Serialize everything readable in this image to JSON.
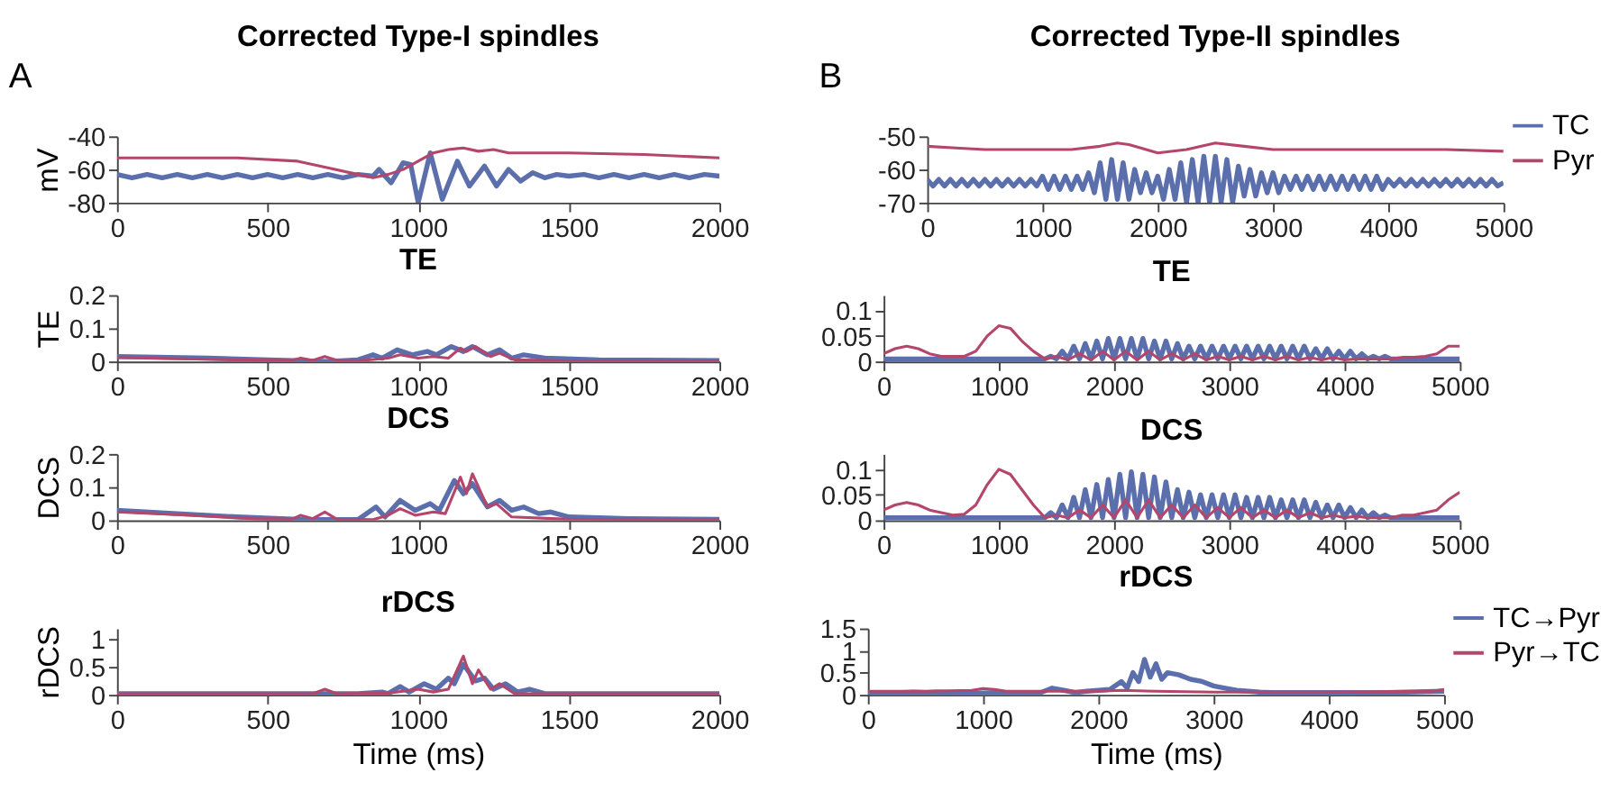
{
  "chart_data": [
    {
      "type": "line",
      "title": "Corrected Type-I spindles",
      "ylabel": "mV",
      "annotations": [
        "A"
      ],
      "xlim": [
        0,
        2000
      ],
      "xticks": [
        0,
        500,
        1000,
        1500,
        2000
      ],
      "ylim": [
        -80,
        -40
      ],
      "yticks": [
        -80,
        -60,
        -40
      ],
      "series": [
        {
          "color": "#5b6fad",
          "x": [
            0,
            50,
            100,
            150,
            200,
            250,
            300,
            350,
            400,
            450,
            500,
            550,
            600,
            650,
            700,
            750,
            800,
            850,
            870,
            910,
            950,
            975,
            1000,
            1040,
            1080,
            1130,
            1170,
            1220,
            1260,
            1300,
            1340,
            1380,
            1420,
            1460,
            1500,
            1550,
            1600,
            1650,
            1700,
            1750,
            1800,
            1850,
            1900,
            1950,
            2000
          ],
          "values": [
            -63,
            -65,
            -63,
            -65,
            -63,
            -65,
            -63,
            -65,
            -63,
            -65,
            -63,
            -65,
            -63,
            -65,
            -63,
            -65,
            -63,
            -64,
            -60,
            -68,
            -56,
            -57,
            -80,
            -50,
            -78,
            -55,
            -70,
            -58,
            -70,
            -60,
            -67,
            -62,
            -65,
            -63,
            -64,
            -63,
            -65,
            -63,
            -65,
            -63,
            -65,
            -63,
            -65,
            -63,
            -64
          ]
        },
        {
          "color": "#b5466b",
          "x": [
            0,
            200,
            400,
            600,
            700,
            800,
            850,
            900,
            950,
            1000,
            1050,
            1100,
            1150,
            1200,
            1250,
            1300,
            1500,
            1750,
            2000
          ],
          "values": [
            -53,
            -53,
            -53,
            -55,
            -59,
            -63,
            -65,
            -63,
            -60,
            -55,
            -50,
            -48,
            -47,
            -49,
            -48,
            -50,
            -50,
            -51,
            -53
          ]
        }
      ]
    },
    {
      "type": "line",
      "title": "Corrected Type-II spindles",
      "annotations": [
        "B"
      ],
      "legend": "top right",
      "xlim": [
        0,
        5000
      ],
      "xticks": [
        0,
        1000,
        2000,
        3000,
        4000,
        5000
      ],
      "ylim": [
        -70,
        -50
      ],
      "yticks": [
        -70,
        -60,
        -50
      ],
      "series": [
        {
          "name": "TC",
          "color": "#5b6fad",
          "x": [
            0,
            50,
            100,
            150,
            200,
            250,
            300,
            350,
            400,
            450,
            500,
            550,
            600,
            650,
            700,
            750,
            800,
            850,
            900,
            950,
            1000,
            1050,
            1100,
            1150,
            1200,
            1250,
            1300,
            1350,
            1400,
            1450,
            1500,
            1550,
            1600,
            1650,
            1700,
            1750,
            1800,
            1850,
            1900,
            1950,
            2000,
            2050,
            2100,
            2150,
            2200,
            2250,
            2300,
            2350,
            2400,
            2450,
            2500,
            2550,
            2600,
            2650,
            2700,
            2750,
            2800,
            2850,
            2900,
            2950,
            3000,
            3050,
            3100,
            3150,
            3200,
            3250,
            3300,
            3350,
            3400,
            3450,
            3500,
            3550,
            3600,
            3650,
            3700,
            3750,
            3800,
            3850,
            3900,
            3950,
            4000,
            4050,
            4100,
            4150,
            4200,
            4250,
            4300,
            4350,
            4400,
            4450,
            4500,
            4550,
            4600,
            4650,
            4700,
            4750,
            4800,
            4850,
            4900,
            4950,
            5000
          ],
          "values": [
            -63,
            -65,
            -63,
            -65,
            -63,
            -65,
            -63,
            -65,
            -63,
            -65,
            -63,
            -65,
            -63,
            -65,
            -63,
            -65,
            -63,
            -65,
            -63,
            -65,
            -62,
            -66,
            -62,
            -66,
            -62,
            -66,
            -62,
            -66,
            -61,
            -67,
            -58,
            -69,
            -57,
            -69,
            -58,
            -69,
            -60,
            -67,
            -61,
            -67,
            -62,
            -69,
            -60,
            -69,
            -58,
            -70,
            -57,
            -70,
            -56,
            -70,
            -56,
            -70,
            -57,
            -70,
            -59,
            -68,
            -60,
            -68,
            -61,
            -67,
            -61,
            -67,
            -62,
            -66,
            -62,
            -66,
            -62,
            -66,
            -62,
            -66,
            -62,
            -66,
            -62,
            -66,
            -62,
            -66,
            -62,
            -66,
            -62,
            -66,
            -63,
            -65,
            -63,
            -65,
            -63,
            -65,
            -63,
            -65,
            -63,
            -65,
            -63,
            -65,
            -63,
            -65,
            -63,
            -65,
            -63,
            -65,
            -63,
            -65,
            -64
          ]
        },
        {
          "name": "Pyr",
          "color": "#b5466b",
          "x": [
            0,
            250,
            500,
            750,
            1000,
            1250,
            1500,
            1650,
            1750,
            2000,
            2250,
            2500,
            2750,
            3000,
            3500,
            4000,
            4500,
            5000
          ],
          "values": [
            -53,
            -53.5,
            -54,
            -54,
            -54,
            -54,
            -53,
            -52,
            -52.5,
            -55,
            -54,
            -52,
            -53,
            -54,
            -54,
            -54,
            -54,
            -54.5
          ]
        }
      ]
    },
    {
      "type": "line",
      "title": "TE",
      "ylabel": "TE",
      "xlim": [
        0,
        2000
      ],
      "xticks": [
        0,
        500,
        1000,
        1500,
        2000
      ],
      "ylim": [
        0,
        0.2
      ],
      "yticks": [
        0,
        0.1,
        0.2
      ],
      "series": [
        {
          "color": "#5b6fad",
          "x": [
            0,
            300,
            500,
            700,
            800,
            850,
            880,
            930,
            980,
            1030,
            1060,
            1110,
            1150,
            1180,
            1230,
            1270,
            1310,
            1350,
            1420,
            1600,
            2000
          ],
          "values": [
            0.015,
            0.01,
            0.005,
            0,
            0.005,
            0.02,
            0.01,
            0.035,
            0.02,
            0.03,
            0.02,
            0.045,
            0.03,
            0.045,
            0.02,
            0.035,
            0.01,
            0.02,
            0.01,
            0.005,
            0.003
          ]
        },
        {
          "color": "#b5466b",
          "x": [
            0,
            400,
            580,
            610,
            650,
            690,
            730,
            800,
            900,
            940,
            1000,
            1050,
            1100,
            1140,
            1160,
            1190,
            1240,
            1270,
            1320,
            1500,
            2000
          ],
          "values": [
            0.012,
            0.005,
            0.003,
            0.01,
            0.003,
            0.015,
            0.003,
            0.002,
            0.01,
            0.02,
            0.01,
            0.015,
            0.01,
            0.04,
            0.03,
            0.045,
            0.015,
            0.025,
            0.005,
            0.002,
            0.002
          ]
        }
      ]
    },
    {
      "type": "line",
      "title": "TE",
      "xlim": [
        0,
        5000
      ],
      "xticks": [
        0,
        1000,
        2000,
        3000,
        4000,
        5000
      ],
      "ylim": [
        0,
        0.13
      ],
      "yticks": [
        0,
        0.05,
        0.1
      ],
      "series": [
        {
          "color": "#5b6fad",
          "x": [
            0,
            1400,
            1450,
            1500,
            1550,
            1600,
            1650,
            1700,
            1750,
            1800,
            1850,
            1900,
            1950,
            2000,
            2050,
            2100,
            2150,
            2200,
            2250,
            2300,
            2350,
            2400,
            2450,
            2500,
            2550,
            2600,
            2650,
            2700,
            2750,
            2800,
            2850,
            2900,
            2950,
            3000,
            3050,
            3100,
            3150,
            3200,
            3250,
            3300,
            3350,
            3400,
            3450,
            3500,
            3550,
            3600,
            3650,
            3700,
            3750,
            3800,
            3850,
            3900,
            3950,
            4000,
            4050,
            4100,
            4150,
            4200,
            4250,
            4300,
            4350,
            4400,
            4450,
            4500,
            5000
          ],
          "values": [
            0.005,
            0.005,
            0.01,
            0.005,
            0.02,
            0.005,
            0.03,
            0.005,
            0.035,
            0.005,
            0.04,
            0.005,
            0.045,
            0.005,
            0.045,
            0.005,
            0.045,
            0.005,
            0.045,
            0.005,
            0.04,
            0.005,
            0.04,
            0.005,
            0.035,
            0.005,
            0.03,
            0.005,
            0.03,
            0.005,
            0.03,
            0.005,
            0.03,
            0.005,
            0.03,
            0.005,
            0.03,
            0.005,
            0.03,
            0.005,
            0.03,
            0.005,
            0.03,
            0.005,
            0.03,
            0.005,
            0.03,
            0.005,
            0.025,
            0.005,
            0.025,
            0.005,
            0.02,
            0.005,
            0.02,
            0.005,
            0.015,
            0.005,
            0.01,
            0.005,
            0.01,
            0.005,
            0.005,
            0.005,
            0.005
          ]
        },
        {
          "color": "#b5466b",
          "x": [
            0,
            100,
            200,
            300,
            400,
            500,
            600,
            700,
            800,
            900,
            1000,
            1100,
            1200,
            1300,
            1400,
            1500,
            1600,
            1700,
            1800,
            1900,
            2000,
            2100,
            2200,
            2300,
            2400,
            2500,
            2600,
            2700,
            2800,
            2900,
            3000,
            3100,
            3200,
            3300,
            3400,
            3500,
            3600,
            3700,
            3800,
            3900,
            4000,
            4100,
            4200,
            4300,
            4400,
            4500,
            4600,
            4700,
            4800,
            4900,
            5000
          ],
          "values": [
            0.015,
            0.025,
            0.03,
            0.025,
            0.015,
            0.01,
            0.01,
            0.01,
            0.02,
            0.05,
            0.07,
            0.065,
            0.04,
            0.02,
            0.005,
            0.01,
            0.003,
            0.015,
            0.003,
            0.02,
            0.003,
            0.02,
            0.003,
            0.02,
            0.003,
            0.015,
            0.003,
            0.015,
            0.003,
            0.01,
            0.003,
            0.01,
            0.003,
            0.01,
            0.003,
            0.01,
            0.003,
            0.008,
            0.003,
            0.008,
            0.003,
            0.005,
            0.005,
            0.005,
            0.005,
            0.008,
            0.008,
            0.01,
            0.015,
            0.03,
            0.03
          ]
        }
      ]
    },
    {
      "type": "line",
      "title": "DCS",
      "ylabel": "DCS",
      "xlim": [
        0,
        2000
      ],
      "xticks": [
        0,
        500,
        1000,
        1500,
        2000
      ],
      "ylim": [
        0,
        0.2
      ],
      "yticks": [
        0,
        0.1,
        0.2
      ],
      "series": [
        {
          "color": "#5b6fad",
          "x": [
            0,
            200,
            400,
            600,
            800,
            860,
            890,
            940,
            990,
            1040,
            1070,
            1120,
            1150,
            1180,
            1230,
            1270,
            1310,
            1350,
            1400,
            1440,
            1500,
            1700,
            2000
          ],
          "values": [
            0.03,
            0.02,
            0.01,
            0.003,
            0.002,
            0.04,
            0.01,
            0.06,
            0.03,
            0.05,
            0.03,
            0.12,
            0.08,
            0.11,
            0.04,
            0.06,
            0.03,
            0.04,
            0.02,
            0.025,
            0.01,
            0.005,
            0.003
          ]
        },
        {
          "color": "#b5466b",
          "x": [
            0,
            250,
            450,
            580,
            610,
            650,
            690,
            730,
            850,
            900,
            940,
            990,
            1050,
            1090,
            1140,
            1160,
            1180,
            1230,
            1260,
            1310,
            1500,
            2000
          ],
          "values": [
            0.025,
            0.015,
            0.005,
            0.003,
            0.015,
            0.005,
            0.025,
            0.003,
            0.002,
            0.015,
            0.035,
            0.015,
            0.025,
            0.02,
            0.13,
            0.08,
            0.14,
            0.04,
            0.05,
            0.01,
            0.003,
            0.002
          ]
        }
      ]
    },
    {
      "type": "line",
      "title": "DCS",
      "xlim": [
        0,
        5000
      ],
      "xticks": [
        0,
        1000,
        2000,
        3000,
        4000,
        5000
      ],
      "ylim": [
        0,
        0.13
      ],
      "yticks": [
        0,
        0.05,
        0.1
      ],
      "series": [
        {
          "color": "#5b6fad",
          "x": [
            0,
            1400,
            1450,
            1500,
            1550,
            1600,
            1650,
            1700,
            1750,
            1800,
            1850,
            1900,
            1950,
            2000,
            2050,
            2100,
            2150,
            2200,
            2250,
            2300,
            2350,
            2400,
            2450,
            2500,
            2550,
            2600,
            2650,
            2700,
            2750,
            2800,
            2850,
            2900,
            2950,
            3000,
            3050,
            3100,
            3150,
            3200,
            3250,
            3300,
            3350,
            3400,
            3450,
            3500,
            3550,
            3600,
            3650,
            3700,
            3750,
            3800,
            3850,
            3900,
            3950,
            4000,
            4050,
            4100,
            4150,
            4200,
            4250,
            4300,
            4350,
            4400,
            4450,
            4500,
            5000
          ],
          "values": [
            0.005,
            0.005,
            0.015,
            0.005,
            0.03,
            0.005,
            0.045,
            0.005,
            0.06,
            0.005,
            0.07,
            0.005,
            0.08,
            0.005,
            0.09,
            0.005,
            0.095,
            0.005,
            0.09,
            0.005,
            0.085,
            0.005,
            0.075,
            0.005,
            0.06,
            0.005,
            0.055,
            0.005,
            0.05,
            0.005,
            0.05,
            0.005,
            0.05,
            0.005,
            0.05,
            0.005,
            0.045,
            0.005,
            0.045,
            0.005,
            0.045,
            0.005,
            0.04,
            0.005,
            0.04,
            0.005,
            0.04,
            0.005,
            0.035,
            0.005,
            0.03,
            0.005,
            0.03,
            0.005,
            0.025,
            0.005,
            0.02,
            0.005,
            0.015,
            0.005,
            0.01,
            0.005,
            0.005,
            0.005,
            0.005
          ]
        },
        {
          "color": "#b5466b",
          "x": [
            0,
            100,
            200,
            300,
            400,
            500,
            600,
            700,
            800,
            900,
            1000,
            1100,
            1200,
            1300,
            1400,
            1500,
            1600,
            1700,
            1800,
            1900,
            2000,
            2100,
            2200,
            2300,
            2400,
            2500,
            2600,
            2700,
            2800,
            2900,
            3000,
            3100,
            3200,
            3300,
            3400,
            3500,
            3600,
            3700,
            3800,
            3900,
            4000,
            4100,
            4200,
            4300,
            4400,
            4500,
            4600,
            4700,
            4800,
            4900,
            5000
          ],
          "values": [
            0.02,
            0.03,
            0.035,
            0.03,
            0.02,
            0.015,
            0.01,
            0.012,
            0.03,
            0.07,
            0.1,
            0.09,
            0.06,
            0.03,
            0.005,
            0.01,
            0.005,
            0.02,
            0.005,
            0.03,
            0.005,
            0.04,
            0.005,
            0.04,
            0.005,
            0.03,
            0.005,
            0.03,
            0.005,
            0.025,
            0.005,
            0.025,
            0.005,
            0.02,
            0.005,
            0.02,
            0.005,
            0.015,
            0.005,
            0.01,
            0.005,
            0.008,
            0.005,
            0.005,
            0.005,
            0.01,
            0.01,
            0.015,
            0.02,
            0.04,
            0.055
          ]
        }
      ]
    },
    {
      "type": "line",
      "title": "rDCS",
      "ylabel": "rDCS",
      "xlabel": "Time (ms)",
      "xlim": [
        0,
        2000
      ],
      "xticks": [
        0,
        500,
        1000,
        1500,
        2000
      ],
      "ylim": [
        0,
        1.2
      ],
      "yticks": [
        0,
        0.5,
        1
      ],
      "series": [
        {
          "color": "#5b6fad",
          "x": [
            0,
            800,
            880,
            900,
            940,
            970,
            1020,
            1060,
            1100,
            1120,
            1150,
            1190,
            1220,
            1250,
            1290,
            1330,
            1370,
            1420,
            2000
          ],
          "values": [
            0.02,
            0.02,
            0.05,
            0.02,
            0.15,
            0.05,
            0.2,
            0.1,
            0.3,
            0.2,
            0.55,
            0.25,
            0.3,
            0.1,
            0.2,
            0.05,
            0.1,
            0.02,
            0.02
          ]
        },
        {
          "color": "#b5466b",
          "x": [
            0,
            650,
            690,
            730,
            900,
            1000,
            1050,
            1100,
            1150,
            1180,
            1200,
            1240,
            1270,
            1320,
            2000
          ],
          "values": [
            0.02,
            0.02,
            0.1,
            0.02,
            0.03,
            0.1,
            0.05,
            0.1,
            0.7,
            0.2,
            0.45,
            0.1,
            0.2,
            0.02,
            0.02
          ]
        }
      ]
    },
    {
      "type": "line",
      "title": "rDCS",
      "xlabel": "Time (ms)",
      "legend": "top right",
      "xlim": [
        0,
        5000
      ],
      "xticks": [
        0,
        1000,
        2000,
        3000,
        4000,
        5000
      ],
      "ylim": [
        0,
        1.5
      ],
      "yticks": [
        0,
        0.5,
        1,
        1.5
      ],
      "series": [
        {
          "name": "TC→Pyr",
          "color": "#5b6fad",
          "x": [
            0,
            100,
            200,
            300,
            400,
            500,
            600,
            700,
            800,
            900,
            1000,
            1100,
            1200,
            1300,
            1400,
            1500,
            1600,
            1700,
            1800,
            1900,
            2000,
            2100,
            2200,
            2250,
            2300,
            2350,
            2400,
            2450,
            2500,
            2550,
            2600,
            2700,
            2800,
            2900,
            3000,
            3100,
            3200,
            3300,
            3400,
            3500,
            4000,
            4500,
            5000
          ],
          "values": [
            0.03,
            0.03,
            0.03,
            0.05,
            0.06,
            0.05,
            0.06,
            0.05,
            0.05,
            0.05,
            0.04,
            0.05,
            0.04,
            0.04,
            0.05,
            0.05,
            0.15,
            0.1,
            0.05,
            0.08,
            0.1,
            0.12,
            0.3,
            0.15,
            0.5,
            0.3,
            0.8,
            0.4,
            0.7,
            0.35,
            0.5,
            0.45,
            0.35,
            0.3,
            0.2,
            0.15,
            0.1,
            0.08,
            0.06,
            0.05,
            0.05,
            0.05,
            0.08
          ]
        },
        {
          "name": "Pyr→TC",
          "color": "#b5466b",
          "x": [
            0,
            500,
            900,
            1000,
            1100,
            1200,
            2000,
            2200,
            2500,
            3000,
            4000,
            4900,
            5000
          ],
          "values": [
            0.08,
            0.08,
            0.1,
            0.14,
            0.12,
            0.08,
            0.08,
            0.1,
            0.08,
            0.06,
            0.06,
            0.08,
            0.12
          ]
        }
      ]
    }
  ]
}
